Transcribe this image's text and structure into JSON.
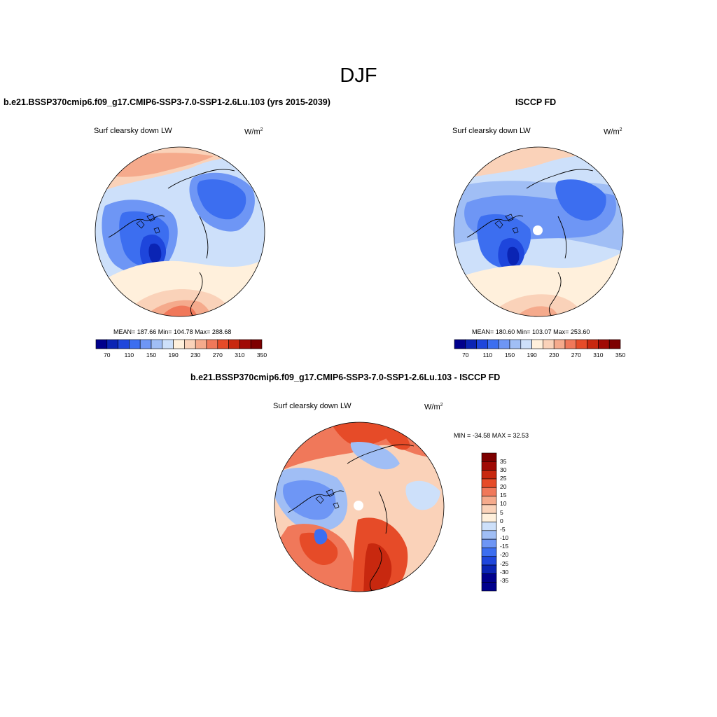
{
  "title": "DJF",
  "panels": [
    {
      "id": "model",
      "header": "b.e21.BSSP370cmip6.f09_g17.CMIP6-SSP3-7.0-SSP1-2.6Lu.103 (yrs 2015-2039)",
      "variable": "Surf clearsky down LW",
      "units": "W/m",
      "units_sup": "2",
      "stats": "MEAN= 187.66  Min= 104.78  Max= 288.68",
      "mean": 187.66,
      "min": 104.78,
      "max": 288.68
    },
    {
      "id": "obs",
      "header": "ISCCP FD",
      "variable": "Surf clearsky down LW",
      "units": "W/m",
      "units_sup": "2",
      "stats": "MEAN= 180.60  Min= 103.07  Max= 253.60",
      "mean": 180.6,
      "min": 103.07,
      "max": 253.6
    },
    {
      "id": "diff",
      "header": "b.e21.BSSP370cmip6.f09_g17.CMIP6-SSP3-7.0-SSP1-2.6Lu.103 - ISCCP FD",
      "variable": "Surf clearsky down LW",
      "units": "W/m",
      "units_sup": "2",
      "stats": "MIN = -34.58 MAX =  32.53",
      "min": -34.58,
      "max": 32.53
    }
  ],
  "colorbar_abs": {
    "ticks": [
      "70",
      "110",
      "150",
      "190",
      "230",
      "270",
      "310",
      "350"
    ],
    "colors": [
      "#00008c",
      "#0a24b4",
      "#1e46dc",
      "#3c6ef0",
      "#6e96f5",
      "#a0bef5",
      "#cde0fa",
      "#fff0dc",
      "#fad2b9",
      "#f5aa8c",
      "#f0785a",
      "#e64b28",
      "#c8280f",
      "#a00a05",
      "#7d0000"
    ]
  },
  "colorbar_diff": {
    "ticks": [
      "35",
      "30",
      "25",
      "20",
      "15",
      "10",
      "5",
      "0",
      "-5",
      "-10",
      "-15",
      "-20",
      "-25",
      "-30",
      "-35"
    ],
    "colors": [
      "#7d0000",
      "#a00a05",
      "#c8280f",
      "#e64b28",
      "#f0785a",
      "#f5aa8c",
      "#fad2b9",
      "#fff0dc",
      "#cde0fa",
      "#a0bef5",
      "#6e96f5",
      "#3c6ef0",
      "#1e46dc",
      "#0a24b4",
      "#00008c"
    ]
  }
}
